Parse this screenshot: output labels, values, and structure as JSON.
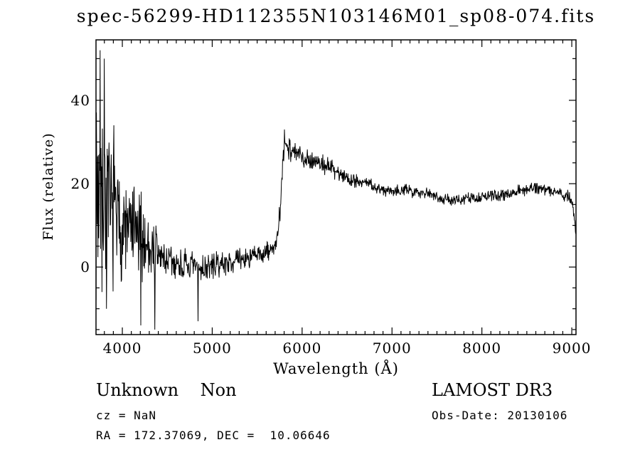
{
  "window": {
    "background": "#ffffff",
    "foreground": "#000000"
  },
  "chart_data": {
    "type": "line",
    "title": "spec-56299-HD112355N103146M01_sp08-074.fits",
    "xlabel": "Wavelength (Å)",
    "ylabel": "Flux (relative)",
    "xlim": [
      3707,
      9047
    ],
    "ylim": [
      -16.2,
      54.5
    ],
    "x_ticks": [
      4000,
      5000,
      6000,
      7000,
      8000,
      9000
    ],
    "x_minor_step": 100,
    "y_ticks": [
      0,
      20,
      40
    ],
    "y_minor_step": 5,
    "grid": false,
    "legend": "none",
    "line_color": "#000000",
    "series": [
      {
        "name": "spectrum",
        "samples": 1300,
        "seed": 7,
        "envelope": [
          [
            3708,
            18,
            28
          ],
          [
            3760,
            20,
            28
          ],
          [
            3850,
            14,
            20
          ],
          [
            3950,
            10,
            17
          ],
          [
            4050,
            9,
            14
          ],
          [
            4150,
            8,
            14
          ],
          [
            4250,
            6,
            12
          ],
          [
            4350,
            4,
            10
          ],
          [
            4450,
            2,
            7
          ],
          [
            4550,
            1,
            5
          ],
          [
            4650,
            0.5,
            4.5
          ],
          [
            4750,
            0,
            4.5
          ],
          [
            4850,
            -0.5,
            4.5
          ],
          [
            4950,
            0,
            4
          ],
          [
            5050,
            0.5,
            3.5
          ],
          [
            5150,
            1,
            3.2
          ],
          [
            5250,
            1.5,
            3.2
          ],
          [
            5350,
            2,
            3.2
          ],
          [
            5450,
            2.5,
            3.2
          ],
          [
            5550,
            3,
            3
          ],
          [
            5650,
            4,
            3
          ],
          [
            5720,
            6,
            3
          ],
          [
            5760,
            14,
            4
          ],
          [
            5790,
            27,
            4
          ],
          [
            5820,
            30,
            3.5
          ],
          [
            5860,
            28.5,
            3.5
          ],
          [
            5950,
            27,
            3
          ],
          [
            6050,
            26,
            2.8
          ],
          [
            6150,
            25.5,
            2.8
          ],
          [
            6250,
            24.5,
            2.8
          ],
          [
            6350,
            23.5,
            2.6
          ],
          [
            6450,
            22,
            2.4
          ],
          [
            6550,
            21,
            2.2
          ],
          [
            6650,
            20.5,
            2.2
          ],
          [
            6750,
            20,
            2
          ],
          [
            6850,
            18.5,
            2
          ],
          [
            6950,
            18.5,
            1.8
          ],
          [
            7050,
            18.5,
            1.7
          ],
          [
            7150,
            18.5,
            1.7
          ],
          [
            7250,
            18,
            1.7
          ],
          [
            7350,
            18,
            1.7
          ],
          [
            7450,
            17.5,
            1.7
          ],
          [
            7550,
            16.5,
            1.7
          ],
          [
            7650,
            16,
            1.7
          ],
          [
            7750,
            16,
            1.7
          ],
          [
            7850,
            16.5,
            1.7
          ],
          [
            7950,
            16.5,
            1.7
          ],
          [
            8050,
            17,
            1.7
          ],
          [
            8150,
            17,
            1.7
          ],
          [
            8250,
            17.5,
            1.7
          ],
          [
            8350,
            18,
            1.7
          ],
          [
            8450,
            18.5,
            1.7
          ],
          [
            8550,
            19,
            1.7
          ],
          [
            8650,
            19,
            1.7
          ],
          [
            8750,
            18.5,
            1.8
          ],
          [
            8850,
            18,
            2
          ],
          [
            8950,
            17,
            2.2
          ],
          [
            9000,
            15.5,
            2
          ],
          [
            9030,
            12,
            1.5
          ],
          [
            9045,
            8,
            1
          ]
        ],
        "spikes": [
          [
            3755,
            52
          ],
          [
            3775,
            -6
          ],
          [
            3800,
            50
          ],
          [
            3825,
            -10
          ],
          [
            3905,
            34
          ],
          [
            4205,
            -14
          ],
          [
            4360,
            -15
          ],
          [
            4840,
            -13
          ],
          [
            5805,
            33
          ]
        ]
      }
    ]
  },
  "annotations": {
    "class_label": "Unknown    Non",
    "survey": "LAMOST DR3",
    "cz": "cz = NaN",
    "obs_date": "Obs-Date: 20130106",
    "ra_dec": "RA = 172.37069, DEC =  10.06646"
  }
}
